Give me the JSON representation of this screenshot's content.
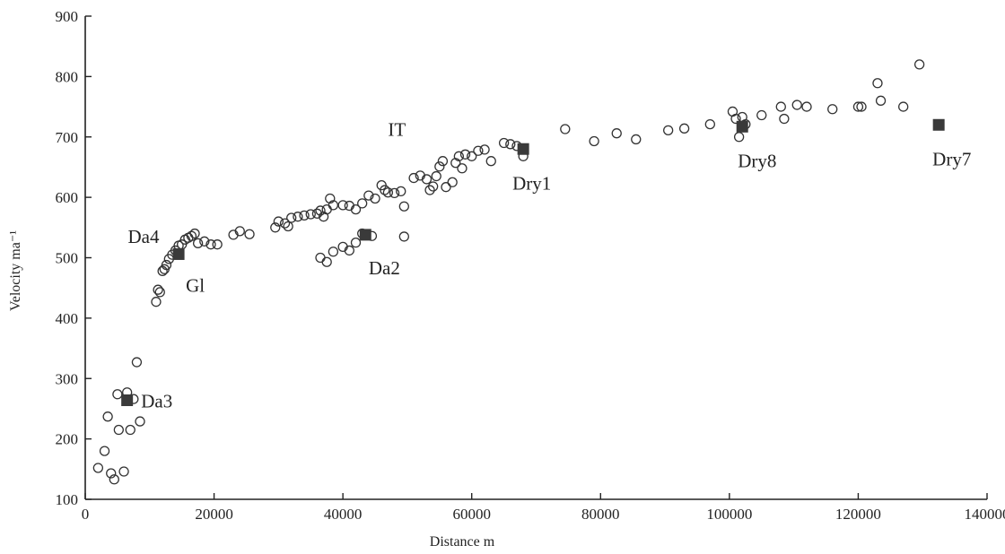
{
  "chart_data": {
    "type": "scatter",
    "title": "",
    "xlabel": "Distance m",
    "ylabel": "Velocity ma⁻¹",
    "xlim": [
      0,
      140000
    ],
    "ylim": [
      100,
      900
    ],
    "x_ticks": [
      0,
      20000,
      40000,
      60000,
      80000,
      100000,
      120000,
      140000
    ],
    "x_tick_labels": [
      "0",
      "20000",
      "40000",
      "60000",
      "80000",
      "100000",
      "120000",
      "140000"
    ],
    "y_ticks": [
      100,
      200,
      300,
      400,
      500,
      600,
      700,
      800,
      900
    ],
    "y_tick_labels": [
      "100",
      "200",
      "300",
      "400",
      "500",
      "600",
      "700",
      "800",
      "900"
    ],
    "grid": false,
    "series": [
      {
        "marker": "open-circle",
        "points": [
          [
            2000,
            152
          ],
          [
            3000,
            180
          ],
          [
            3500,
            237
          ],
          [
            4000,
            143
          ],
          [
            4500,
            133
          ],
          [
            5000,
            274
          ],
          [
            5200,
            215
          ],
          [
            6000,
            146
          ],
          [
            6500,
            277
          ],
          [
            7000,
            215
          ],
          [
            7500,
            266
          ],
          [
            8000,
            327
          ],
          [
            8500,
            229
          ],
          [
            11000,
            427
          ],
          [
            11300,
            447
          ],
          [
            11600,
            443
          ],
          [
            12000,
            478
          ],
          [
            12300,
            481
          ],
          [
            12600,
            488
          ],
          [
            13000,
            498
          ],
          [
            13500,
            505
          ],
          [
            14000,
            512
          ],
          [
            14500,
            520
          ],
          [
            15000,
            522
          ],
          [
            15500,
            530
          ],
          [
            16000,
            533
          ],
          [
            16500,
            536
          ],
          [
            17000,
            540
          ],
          [
            17500,
            524
          ],
          [
            18500,
            527
          ],
          [
            19500,
            522
          ],
          [
            20500,
            522
          ],
          [
            23000,
            538
          ],
          [
            24000,
            544
          ],
          [
            25500,
            539
          ],
          [
            29500,
            550
          ],
          [
            30000,
            560
          ],
          [
            31000,
            557
          ],
          [
            31500,
            552
          ],
          [
            32000,
            566
          ],
          [
            33000,
            568
          ],
          [
            34000,
            570
          ],
          [
            35000,
            572
          ],
          [
            36000,
            573
          ],
          [
            36500,
            578
          ],
          [
            37000,
            568
          ],
          [
            37500,
            580
          ],
          [
            38000,
            598
          ],
          [
            38500,
            587
          ],
          [
            36500,
            500
          ],
          [
            37500,
            493
          ],
          [
            38500,
            510
          ],
          [
            40000,
            518
          ],
          [
            41000,
            512
          ],
          [
            42000,
            525
          ],
          [
            43000,
            540
          ],
          [
            44500,
            536
          ],
          [
            49500,
            535
          ],
          [
            40000,
            587
          ],
          [
            41000,
            586
          ],
          [
            42000,
            580
          ],
          [
            43000,
            590
          ],
          [
            44000,
            603
          ],
          [
            45000,
            598
          ],
          [
            46000,
            620
          ],
          [
            46500,
            612
          ],
          [
            47000,
            608
          ],
          [
            48000,
            607
          ],
          [
            49000,
            610
          ],
          [
            49500,
            585
          ],
          [
            51000,
            632
          ],
          [
            52000,
            636
          ],
          [
            53000,
            630
          ],
          [
            53500,
            612
          ],
          [
            54000,
            618
          ],
          [
            54500,
            635
          ],
          [
            55000,
            651
          ],
          [
            55500,
            660
          ],
          [
            56000,
            617
          ],
          [
            57000,
            625
          ],
          [
            57500,
            657
          ],
          [
            58000,
            668
          ],
          [
            58500,
            648
          ],
          [
            59000,
            671
          ],
          [
            60000,
            668
          ],
          [
            61000,
            677
          ],
          [
            62000,
            679
          ],
          [
            63000,
            660
          ],
          [
            65000,
            690
          ],
          [
            66000,
            688
          ],
          [
            67000,
            685
          ],
          [
            68000,
            668
          ],
          [
            74500,
            713
          ],
          [
            79000,
            693
          ],
          [
            82500,
            706
          ],
          [
            85500,
            696
          ],
          [
            90500,
            711
          ],
          [
            93000,
            714
          ],
          [
            97000,
            721
          ],
          [
            100500,
            742
          ],
          [
            101000,
            730
          ],
          [
            101500,
            700
          ],
          [
            102000,
            733
          ],
          [
            102500,
            721
          ],
          [
            105000,
            736
          ],
          [
            108000,
            750
          ],
          [
            108500,
            730
          ],
          [
            110500,
            753
          ],
          [
            112000,
            750
          ],
          [
            116000,
            746
          ],
          [
            120000,
            750
          ],
          [
            120500,
            750
          ],
          [
            123000,
            789
          ],
          [
            123500,
            760
          ],
          [
            127000,
            750
          ],
          [
            129500,
            820
          ]
        ]
      },
      {
        "marker": "filled-square",
        "points": [
          [
            6500,
            264
          ],
          [
            14500,
            506
          ],
          [
            43500,
            538
          ],
          [
            68000,
            680
          ],
          [
            102000,
            717
          ],
          [
            132500,
            720
          ]
        ]
      }
    ],
    "annotations": [
      {
        "text": "Da3",
        "x": 7000,
        "y": 264
      },
      {
        "text": "Da4",
        "x": 14000,
        "y": 510
      },
      {
        "text": "Gl",
        "x": 14500,
        "y": 500
      },
      {
        "text": "Da2",
        "x": 44000,
        "y": 535
      },
      {
        "text": "IT",
        "x": 52000,
        "y": 660
      },
      {
        "text": "Dry1",
        "x": 68000,
        "y": 675
      },
      {
        "text": "Dry8",
        "x": 102000,
        "y": 712
      },
      {
        "text": "Dry7",
        "x": 132500,
        "y": 715
      }
    ]
  }
}
